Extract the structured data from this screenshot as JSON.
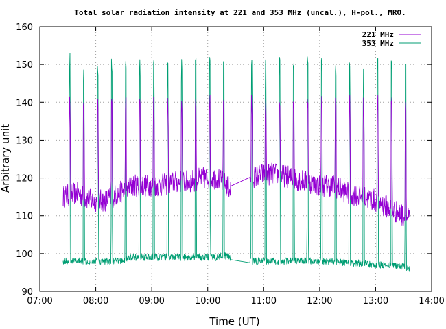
{
  "chart_data": {
    "type": "line",
    "title": "Total solar radiation intensity at 221 and 353 MHz (uncal.), H-pol., MRO.",
    "xlabel": "Time (UT)",
    "ylabel": "Arbitrary unit",
    "xlim": [
      "07:00",
      "14:00"
    ],
    "ylim": [
      90,
      160
    ],
    "x_ticks": [
      "07:00",
      "08:00",
      "09:00",
      "10:00",
      "11:00",
      "12:00",
      "13:00",
      "14:00"
    ],
    "y_ticks": [
      90,
      100,
      110,
      120,
      130,
      140,
      150,
      160
    ],
    "grid": true,
    "legend_position": "top-right",
    "series": [
      {
        "name": "221 MHz",
        "color": "#9400d3",
        "baseline": {
          "x": [
            "07:25",
            "07:40",
            "07:55",
            "08:10",
            "08:25",
            "08:40",
            "08:55",
            "09:10",
            "09:25",
            "09:40",
            "09:55",
            "10:10",
            "10:15",
            "10:25",
            "10:45",
            "11:00",
            "11:15",
            "11:30",
            "11:45",
            "12:00",
            "12:15",
            "12:30",
            "12:45",
            "13:00",
            "13:15",
            "13:30",
            "13:37"
          ],
          "y": [
            115,
            116,
            114,
            114,
            116,
            118,
            118,
            118,
            119,
            119,
            120,
            120,
            119,
            117,
            120,
            121,
            121,
            120,
            119,
            118,
            118,
            116,
            115,
            114,
            112,
            110,
            109
          ]
        },
        "spikes": {
          "x": [
            "07:32",
            "07:47",
            "08:02",
            "08:17",
            "08:32",
            "08:47",
            "09:02",
            "09:17",
            "09:32",
            "09:47",
            "10:02",
            "10:17",
            "10:47",
            "11:02",
            "11:17",
            "11:32",
            "11:47",
            "12:02",
            "12:17",
            "12:32",
            "12:47",
            "13:02",
            "13:17",
            "13:32"
          ],
          "y": [
            140,
            140,
            140,
            140,
            140,
            140,
            140,
            140,
            140,
            140,
            140,
            140,
            140,
            140,
            140,
            140,
            140,
            140,
            140,
            140,
            140,
            140,
            140,
            140
          ]
        }
      },
      {
        "name": "353 MHz",
        "color": "#009e73",
        "baseline": {
          "x": [
            "07:25",
            "07:40",
            "07:55",
            "08:10",
            "08:25",
            "08:40",
            "08:55",
            "09:10",
            "09:25",
            "09:40",
            "09:55",
            "10:10",
            "10:15",
            "10:25",
            "10:45",
            "11:00",
            "11:15",
            "11:30",
            "11:45",
            "12:00",
            "12:15",
            "12:30",
            "12:45",
            "13:00",
            "13:15",
            "13:30",
            "13:37"
          ],
          "y": [
            98,
            98,
            98,
            98,
            98,
            99,
            99,
            99,
            99,
            99,
            99,
            99,
            99.5,
            99,
            98,
            98,
            98,
            98,
            98,
            98,
            98,
            97.5,
            97.5,
            97,
            97,
            96.5,
            96
          ]
        },
        "spikes": {
          "x": [
            "07:32",
            "07:47",
            "08:02",
            "08:17",
            "08:32",
            "08:47",
            "09:02",
            "09:17",
            "09:32",
            "09:47",
            "10:02",
            "10:17",
            "10:47",
            "11:02",
            "11:17",
            "11:32",
            "11:47",
            "12:02",
            "12:17",
            "12:32",
            "12:47",
            "13:02",
            "13:17",
            "13:32"
          ],
          "y": [
            151,
            150,
            149,
            150,
            150,
            150,
            150,
            150,
            150,
            150,
            150,
            150,
            150,
            152,
            150,
            151,
            151,
            150,
            150,
            150,
            150,
            150,
            150,
            150
          ]
        }
      }
    ]
  }
}
